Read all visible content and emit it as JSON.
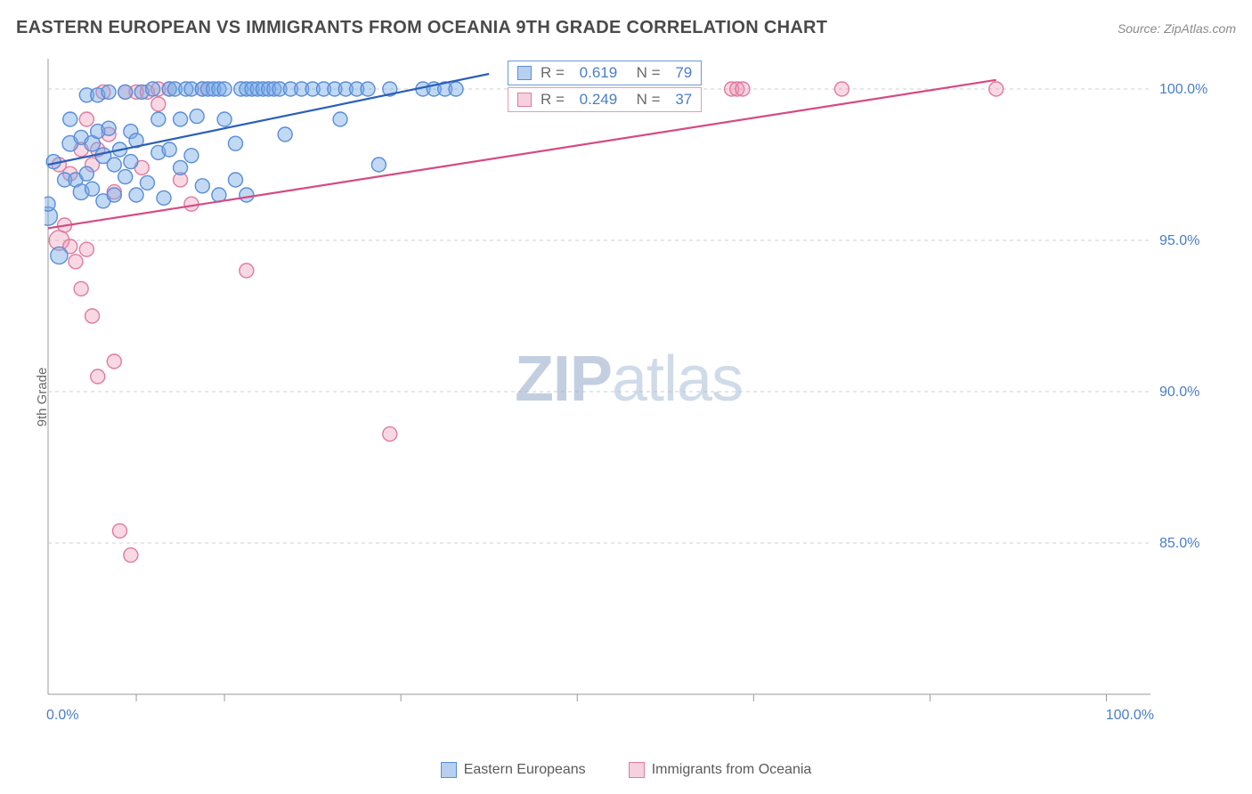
{
  "title": "EASTERN EUROPEAN VS IMMIGRANTS FROM OCEANIA 9TH GRADE CORRELATION CHART",
  "source": "Source: ZipAtlas.com",
  "watermark": {
    "bold": "ZIP",
    "light": "atlas"
  },
  "y_axis_label": "9th Grade",
  "chart": {
    "type": "scatter",
    "plot_bg": "#ffffff",
    "grid_color": "#cfcfcf",
    "grid_dash": "4 4",
    "axis_line_color": "#9a9a9a",
    "xlim": [
      0,
      100
    ],
    "ylim": [
      80,
      101
    ],
    "x_ticks": [
      0,
      100
    ],
    "x_tick_labels": [
      "0.0%",
      "100.0%"
    ],
    "x_minor_ticks": [
      8,
      16,
      32,
      48,
      64,
      80,
      96
    ],
    "y_ticks": [
      85,
      90,
      95,
      100
    ],
    "y_tick_labels": [
      "85.0%",
      "90.0%",
      "95.0%",
      "100.0%"
    ],
    "tick_label_color": "#4a7dc9",
    "tick_fontsize": 16
  },
  "series": {
    "blue": {
      "label": "Eastern Europeans",
      "R": "0.619",
      "N": "79",
      "marker_fill": "rgba(120,170,230,0.45)",
      "marker_stroke": "#5a8dd8",
      "marker_stroke_width": 1.4,
      "baseline_radius": 8,
      "trend": {
        "x1": 0,
        "y1": 97.5,
        "x2": 40,
        "y2": 100.5,
        "stroke": "#2a5fb8",
        "width": 2.2
      },
      "points": [
        [
          0,
          95.8,
          1.3
        ],
        [
          0,
          96.2,
          1.0
        ],
        [
          0.5,
          97.6,
          1.0
        ],
        [
          1,
          94.5,
          1.2
        ],
        [
          1.5,
          97.0,
          1.0
        ],
        [
          2,
          98.2,
          1.1
        ],
        [
          2,
          99.0,
          1.0
        ],
        [
          2.5,
          97.0,
          1.0
        ],
        [
          3,
          96.6,
          1.1
        ],
        [
          3,
          98.4,
          1.0
        ],
        [
          3.5,
          99.8,
          1.0
        ],
        [
          3.5,
          97.2,
          1.0
        ],
        [
          4,
          98.2,
          1.1
        ],
        [
          4,
          96.7,
          1.0
        ],
        [
          4.5,
          98.6,
          1.0
        ],
        [
          4.5,
          99.8,
          1.0
        ],
        [
          5,
          96.3,
          1.0
        ],
        [
          5,
          97.8,
          1.1
        ],
        [
          5.5,
          98.7,
          1.0
        ],
        [
          5.5,
          99.9,
          1.0
        ],
        [
          6,
          96.5,
          1.0
        ],
        [
          6,
          97.5,
          1.0
        ],
        [
          6.5,
          98.0,
          1.0
        ],
        [
          7,
          97.1,
          1.0
        ],
        [
          7,
          99.9,
          1.0
        ],
        [
          7.5,
          97.6,
          1.0
        ],
        [
          7.5,
          98.6,
          1.0
        ],
        [
          8,
          96.5,
          1.0
        ],
        [
          8,
          98.3,
          1.0
        ],
        [
          8.5,
          99.9,
          1.0
        ],
        [
          9,
          96.9,
          1.0
        ],
        [
          9.5,
          100,
          1.0
        ],
        [
          10,
          97.9,
          1.0
        ],
        [
          10,
          99.0,
          1.0
        ],
        [
          10.5,
          96.4,
          1.0
        ],
        [
          11,
          100,
          1.0
        ],
        [
          11,
          98.0,
          1.0
        ],
        [
          11.5,
          100,
          1.0
        ],
        [
          12,
          97.4,
          1.0
        ],
        [
          12,
          99.0,
          1.0
        ],
        [
          12.5,
          100,
          1.0
        ],
        [
          13,
          97.8,
          1.0
        ],
        [
          13,
          100,
          1.0
        ],
        [
          13.5,
          99.1,
          1.0
        ],
        [
          14,
          100,
          1.0
        ],
        [
          14,
          96.8,
          1.0
        ],
        [
          14.5,
          100,
          1.0
        ],
        [
          15,
          100,
          1.0
        ],
        [
          15.5,
          96.5,
          1.0
        ],
        [
          15.5,
          100,
          1.0
        ],
        [
          16,
          99.0,
          1.0
        ],
        [
          16,
          100,
          1.0
        ],
        [
          17,
          97.0,
          1.0
        ],
        [
          17,
          98.2,
          1.0
        ],
        [
          17.5,
          100,
          1.0
        ],
        [
          18,
          96.5,
          1.0
        ],
        [
          18,
          100,
          1.0
        ],
        [
          18.5,
          100,
          1.0
        ],
        [
          19,
          100,
          1.0
        ],
        [
          19.5,
          100,
          1.0
        ],
        [
          20,
          100,
          1.0
        ],
        [
          20.5,
          100,
          1.0
        ],
        [
          21,
          100,
          1.0
        ],
        [
          21.5,
          98.5,
          1.0
        ],
        [
          22,
          100,
          1.0
        ],
        [
          23,
          100,
          1.0
        ],
        [
          24,
          100,
          1.0
        ],
        [
          25,
          100,
          1.0
        ],
        [
          26,
          100,
          1.0
        ],
        [
          26.5,
          99.0,
          1.0
        ],
        [
          27,
          100,
          1.0
        ],
        [
          28,
          100,
          1.0
        ],
        [
          29,
          100,
          1.0
        ],
        [
          30,
          97.5,
          1.0
        ],
        [
          31,
          100,
          1.0
        ],
        [
          34,
          100,
          1.0
        ],
        [
          35,
          100,
          1.0
        ],
        [
          36,
          100,
          1.0
        ],
        [
          37,
          100,
          1.0
        ]
      ]
    },
    "pink": {
      "label": "Immigrants from Oceania",
      "R": "0.249",
      "N": "37",
      "marker_fill": "rgba(235,145,175,0.35)",
      "marker_stroke": "#e17aa0",
      "marker_stroke_width": 1.4,
      "baseline_radius": 8,
      "trend": {
        "x1": 0,
        "y1": 95.4,
        "x2": 86,
        "y2": 100.3,
        "stroke": "#d64a83",
        "width": 2.2
      },
      "points": [
        [
          1,
          95.0,
          1.4
        ],
        [
          1,
          97.5,
          1.0
        ],
        [
          1.5,
          95.5,
          1.0
        ],
        [
          2,
          94.8,
          1.0
        ],
        [
          2,
          97.2,
          1.0
        ],
        [
          2.5,
          94.3,
          1.0
        ],
        [
          3,
          93.4,
          1.0
        ],
        [
          3,
          98.0,
          1.0
        ],
        [
          3.5,
          94.7,
          1.0
        ],
        [
          3.5,
          99.0,
          1.0
        ],
        [
          4,
          92.5,
          1.0
        ],
        [
          4,
          97.5,
          1.0
        ],
        [
          4.5,
          90.5,
          1.0
        ],
        [
          4.5,
          98.0,
          1.0
        ],
        [
          5,
          99.9,
          1.0
        ],
        [
          5.5,
          98.5,
          1.0
        ],
        [
          6,
          91.0,
          1.0
        ],
        [
          6,
          96.6,
          1.0
        ],
        [
          6.5,
          85.4,
          1.0
        ],
        [
          7,
          99.9,
          1.0
        ],
        [
          7.5,
          84.6,
          1.0
        ],
        [
          8,
          99.9,
          1.0
        ],
        [
          8.5,
          97.4,
          1.0
        ],
        [
          9,
          99.9,
          1.0
        ],
        [
          10,
          99.5,
          1.0
        ],
        [
          10,
          100,
          1.0
        ],
        [
          11,
          100,
          1.0
        ],
        [
          12,
          97.0,
          1.0
        ],
        [
          13,
          96.2,
          1.0
        ],
        [
          14,
          100,
          1.0
        ],
        [
          18,
          94.0,
          1.0
        ],
        [
          31,
          88.6,
          1.0
        ],
        [
          62,
          100,
          1.0
        ],
        [
          62.5,
          100,
          1.0
        ],
        [
          63,
          100,
          1.0
        ],
        [
          72,
          100,
          1.0
        ],
        [
          86,
          100,
          1.0
        ]
      ]
    }
  },
  "bottom_legend": [
    {
      "swatch": "blue",
      "label": "Eastern Europeans"
    },
    {
      "swatch": "pink",
      "label": "Immigrants from Oceania"
    }
  ],
  "stat_boxes": [
    {
      "series": "blue",
      "R_label": "R =",
      "N_label": "N ="
    },
    {
      "series": "pink",
      "R_label": "R =",
      "N_label": "N ="
    }
  ]
}
